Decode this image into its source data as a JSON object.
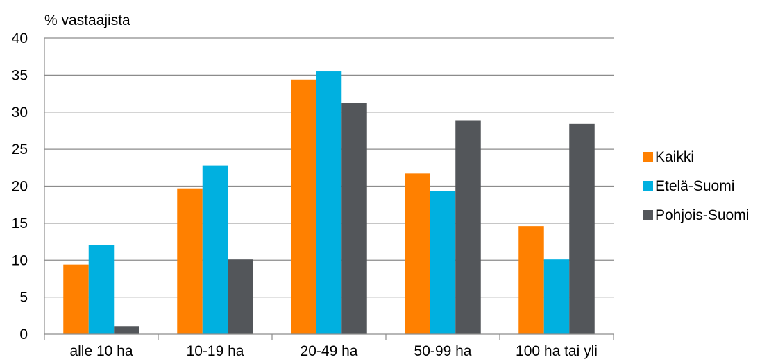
{
  "chart_data": {
    "type": "bar",
    "ylabel": "% vastaajista",
    "ylim": [
      0,
      40
    ],
    "yticks": [
      0,
      5,
      10,
      15,
      20,
      25,
      30,
      35,
      40
    ],
    "grid": true,
    "legend_position": "right",
    "categories": [
      "alle 10 ha",
      "10-19 ha",
      "20-49 ha",
      "50-99 ha",
      "100 ha tai yli"
    ],
    "series": [
      {
        "name": "Kaikki",
        "color": "#FF8000",
        "values": [
          9.4,
          19.7,
          34.4,
          21.7,
          14.6
        ]
      },
      {
        "name": "Etelä-Suomi",
        "color": "#00B0E0",
        "values": [
          12.0,
          22.8,
          35.5,
          19.3,
          10.1
        ]
      },
      {
        "name": "Pohjois-Suomi",
        "color": "#53565A",
        "values": [
          1.1,
          10.1,
          31.2,
          28.9,
          28.4
        ]
      }
    ]
  }
}
